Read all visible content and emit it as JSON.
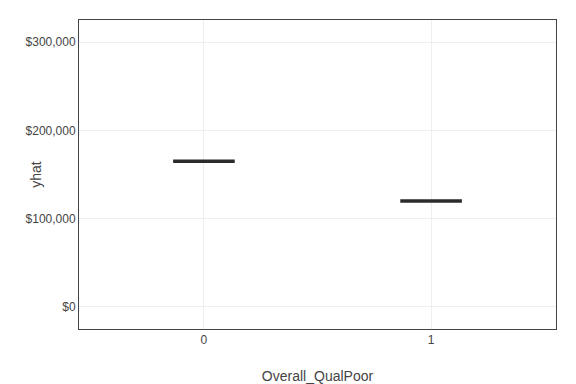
{
  "chart_data": {
    "type": "scatter",
    "x": [
      0,
      1
    ],
    "values": [
      165000,
      120000
    ],
    "color": "#2b2b2b",
    "marker": "dash",
    "xlabel": "Overall_QualPoor",
    "ylabel": "yhat",
    "xlim": [
      -0.55,
      1.55
    ],
    "xticks": [
      0,
      1
    ],
    "ylim": [
      -25000,
      325000
    ],
    "yticks": [
      {
        "value": 0,
        "label": "$0"
      },
      {
        "value": 100000,
        "label": "$100,000"
      },
      {
        "value": 200000,
        "label": "$200,000"
      },
      {
        "value": 300000,
        "label": "$300,000"
      }
    ],
    "grid": true
  }
}
